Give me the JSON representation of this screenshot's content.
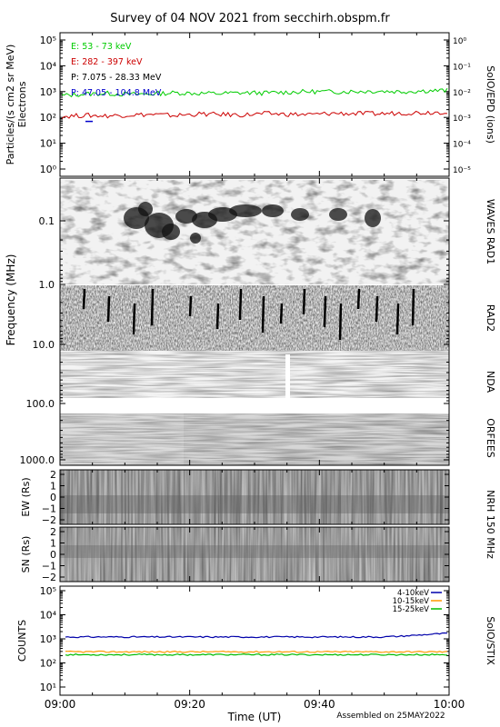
{
  "title": "Survey of 04 NOV 2021 from secchirh.obspm.fr",
  "footer": {
    "x_title": "Time (UT)",
    "assembled": "Assembled on 25MAY2022",
    "time_ticks": [
      "09:00",
      "09:20",
      "09:40",
      "10:00"
    ]
  },
  "colors": {
    "electrons_low": "#00cc00",
    "electrons_high": "#cc0000",
    "protons_low": "#000000",
    "protons_high": "#0000cc",
    "stix_4_10": "#0000aa",
    "stix_10_15": "#ff9900",
    "stix_15_25": "#00bb00"
  },
  "panels": {
    "epd": {
      "ylabel": "Particles/(s cm2 sr MeV)",
      "ylabel2": "Electrons",
      "right_label": "SolO/EPD (ions)",
      "left_ticks": [
        "10⁰",
        "10¹",
        "10²",
        "10³",
        "10⁴",
        "10⁵"
      ],
      "right_ticks": [
        "10⁻⁵",
        "10⁻⁴",
        "10⁻³",
        "10⁻²",
        "10⁻¹",
        "10⁰"
      ],
      "legend": [
        "E: 53 - 73 keV",
        "E: 282 - 397 keV",
        "P: 7.075 - 28.33 MeV",
        "P: 47.05 - 104.8 MeV"
      ]
    },
    "radio": {
      "ylabel": "Frequency (MHz)",
      "freq_ticks": [
        "0.1",
        "1.0",
        "10.0",
        "100.0",
        "1000.0"
      ],
      "right_labels": [
        "WAVES RAD1",
        "RAD2",
        "NDA",
        "ORFEES"
      ]
    },
    "nrh_ew": {
      "ylabel": "EW (Rs)",
      "ticks": [
        "2",
        "1",
        "0",
        "−1",
        "−2"
      ],
      "right_label": "NRH 150 MHz"
    },
    "nrh_sn": {
      "ylabel": "SN (Rs)",
      "ticks": [
        "2",
        "1",
        "0",
        "−1",
        "−2"
      ]
    },
    "stix": {
      "ylabel": "COUNTS",
      "right_label": "SolO/STIX",
      "ticks": [
        "10¹",
        "10²",
        "10³",
        "10⁴",
        "10⁵"
      ],
      "legend": [
        "4-10keV",
        "10-15keV",
        "15-25keV"
      ]
    }
  },
  "chart_data": [
    {
      "type": "line",
      "panel": "SolO/EPD",
      "x_unit": "UT",
      "x_range": [
        "09:00",
        "10:00"
      ],
      "yscale": "log",
      "ylim": [
        0.5,
        100000
      ],
      "series": [
        {
          "name": "E: 53 - 73 keV",
          "values": [
            700,
            800,
            850,
            780,
            820,
            900,
            860,
            840,
            900,
            880,
            950,
            1000,
            980,
            1020,
            1050,
            1000,
            1080,
            1100
          ]
        },
        {
          "name": "E: 282 - 397 keV",
          "values": [
            110,
            120,
            115,
            125,
            130,
            118,
            135,
            130,
            125,
            140,
            132,
            128,
            145,
            140,
            138,
            150,
            155,
            165
          ]
        },
        {
          "name": "P: 47.05 - 104.8 MeV",
          "values": [
            70
          ]
        }
      ]
    },
    {
      "type": "heatmap",
      "panel": "Radio dynamic spectrum",
      "instruments": [
        "WAVES RAD1",
        "RAD2",
        "NDA",
        "ORFEES"
      ],
      "yscale": "log",
      "ylim": [
        0.02,
        1000
      ],
      "x_range": [
        "09:00",
        "10:00"
      ]
    },
    {
      "type": "heatmap",
      "panel": "NRH 150 MHz",
      "ylim": [
        -2,
        2
      ],
      "x_range": [
        "09:00",
        "10:00"
      ]
    },
    {
      "type": "line",
      "panel": "SolO/STIX",
      "yscale": "log",
      "ylim": [
        10,
        100000
      ],
      "series": [
        {
          "name": "4-10keV",
          "values": [
            1200,
            1200,
            1200,
            1200,
            1200,
            1200,
            1200,
            1200,
            1200,
            1200,
            1200,
            1200,
            1200,
            1200,
            1200,
            1300,
            1500,
            1700
          ]
        },
        {
          "name": "10-15keV",
          "values": [
            290,
            290,
            290,
            290,
            290,
            290,
            290,
            290,
            290,
            290,
            290,
            290,
            290,
            290,
            290,
            290,
            290,
            290
          ]
        },
        {
          "name": "15-25keV",
          "values": [
            220,
            220,
            220,
            220,
            220,
            220,
            220,
            220,
            220,
            220,
            220,
            220,
            220,
            220,
            220,
            220,
            220,
            220
          ]
        }
      ]
    }
  ]
}
